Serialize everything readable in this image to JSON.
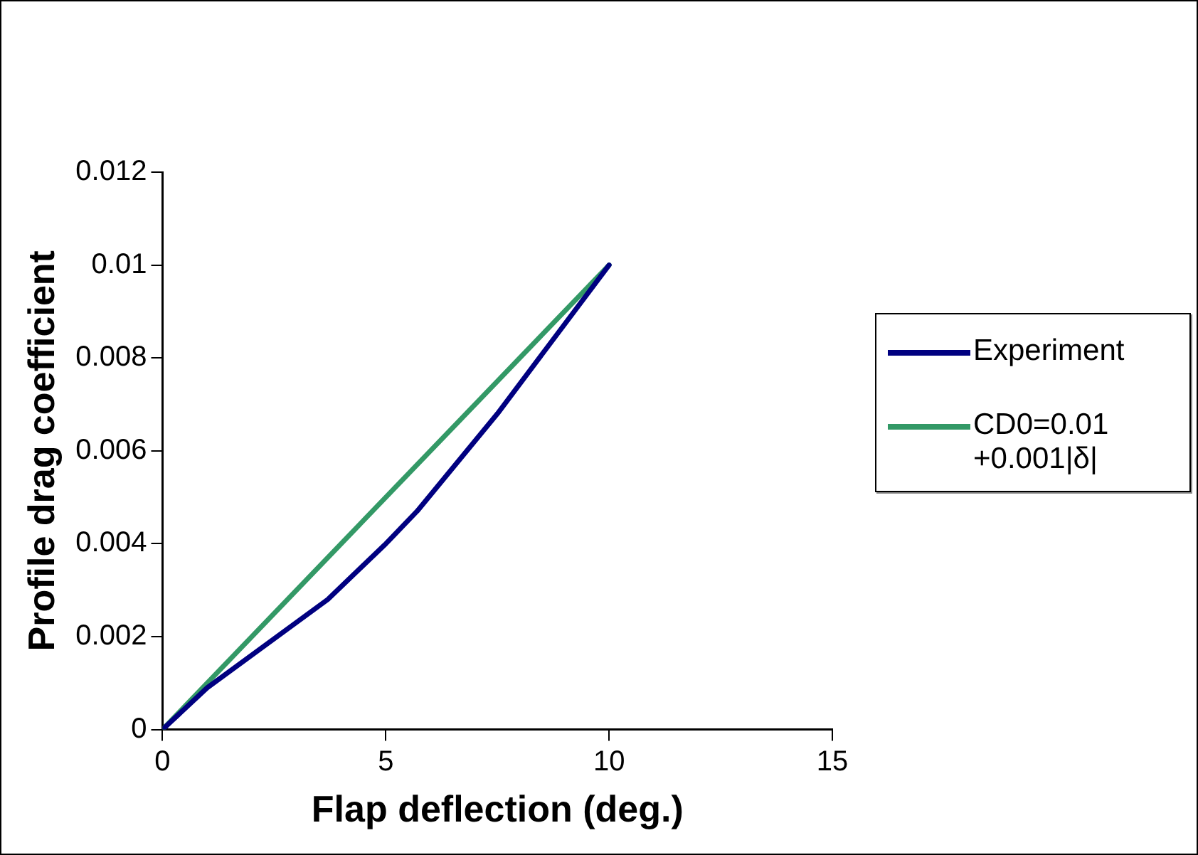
{
  "chart_data": {
    "type": "line",
    "xlabel": "Flap deflection (deg.)",
    "ylabel": "Profile drag coefficient",
    "series": [
      {
        "name": "Experiment",
        "color": "#000080",
        "x": [
          0,
          1,
          3.7,
          5,
          5.7,
          7.5,
          10
        ],
        "values": [
          0,
          0.0009,
          0.0028,
          0.004,
          0.0047,
          0.0068,
          0.01
        ]
      },
      {
        "name": "CD0=0.01 +0.001|δ|",
        "color": "#339966",
        "x": [
          0,
          10
        ],
        "values": [
          0,
          0.01
        ]
      }
    ],
    "xlim": [
      0,
      15
    ],
    "xticks": [
      0,
      5,
      10,
      15
    ],
    "ylim": [
      0,
      0.012
    ],
    "yticks": [
      0,
      0.002,
      0.004,
      0.006,
      0.008,
      0.01,
      0.012
    ],
    "grid": false,
    "legend": "right",
    "marker": "none",
    "line_style": "solid"
  }
}
